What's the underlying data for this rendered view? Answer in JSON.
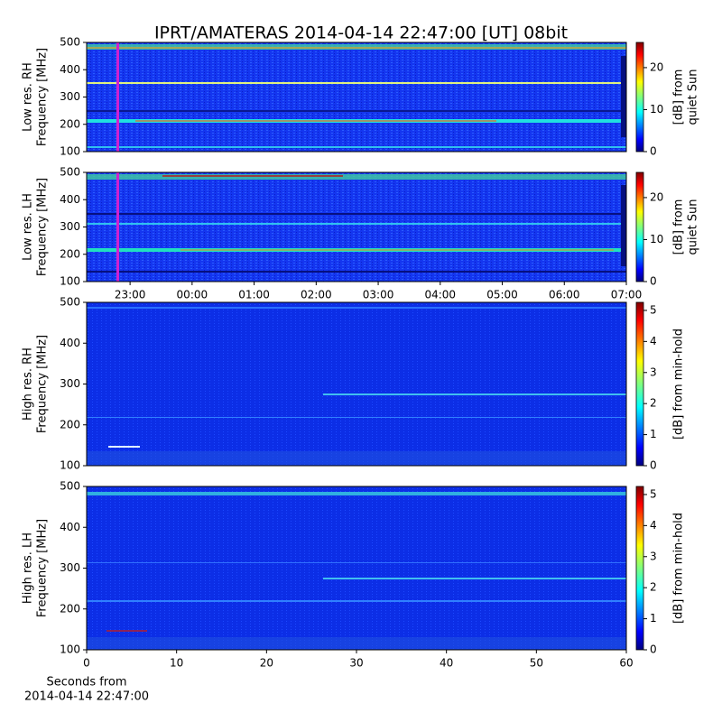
{
  "chart_data": [
    {
      "type": "heatmap",
      "title": "IPRT/AMATERAS 2014-04-14 22:47:00 [UT]   08bit",
      "ylabel": [
        "Low res. RH",
        "Frequency [MHz]"
      ],
      "ylim": [
        100,
        500
      ],
      "yticks": [
        100,
        200,
        300,
        400,
        500
      ],
      "xlim": [
        22.3,
        31.0
      ],
      "colorbar_label": [
        "[dB] from",
        "quiet Sun"
      ],
      "clim": [
        0,
        26
      ],
      "cticks": [
        0,
        10,
        20
      ],
      "colormap": "jet"
    },
    {
      "type": "heatmap",
      "ylabel": [
        "Low res. LH",
        "Frequency [MHz]"
      ],
      "ylim": [
        100,
        500
      ],
      "yticks": [
        100,
        200,
        300,
        400,
        500
      ],
      "xlim": [
        22.3,
        31.0
      ],
      "xticks": [
        {
          "value": 23,
          "label": "23:00"
        },
        {
          "value": 24,
          "label": "00:00"
        },
        {
          "value": 25,
          "label": "01:00"
        },
        {
          "value": 26,
          "label": "02:00"
        },
        {
          "value": 27,
          "label": "03:00"
        },
        {
          "value": 28,
          "label": "04:00"
        },
        {
          "value": 29,
          "label": "05:00"
        },
        {
          "value": 30,
          "label": "06:00"
        },
        {
          "value": 31,
          "label": "07:00"
        }
      ],
      "colorbar_label": [
        "[dB] from",
        "quiet Sun"
      ],
      "clim": [
        0,
        26
      ],
      "cticks": [
        0,
        10,
        20
      ],
      "colormap": "jet"
    },
    {
      "type": "heatmap",
      "ylabel": [
        "High res. RH",
        "Frequency [MHz]"
      ],
      "ylim": [
        100,
        500
      ],
      "yticks": [
        100,
        200,
        300,
        400,
        500
      ],
      "xlim": [
        0,
        60
      ],
      "colorbar_label": [
        "[dB] from min-hold"
      ],
      "clim": [
        0,
        5.26
      ],
      "cticks": [
        0,
        1,
        2,
        3,
        4,
        5
      ],
      "colormap": "jet"
    },
    {
      "type": "heatmap",
      "ylabel": [
        "High res. LH",
        "Frequency [MHz]"
      ],
      "ylim": [
        100,
        500
      ],
      "yticks": [
        100,
        200,
        300,
        400,
        500
      ],
      "xlim": [
        0,
        60
      ],
      "xticks": [
        0,
        10,
        20,
        30,
        40,
        50,
        60
      ],
      "xlabel": [
        "Seconds from",
        "2014-04-14 22:47:00"
      ],
      "colorbar_label": [
        "[dB] from min-hold"
      ],
      "clim": [
        0,
        5.26
      ],
      "cticks": [
        0,
        1,
        2,
        3,
        4,
        5
      ],
      "colormap": "jet"
    }
  ]
}
